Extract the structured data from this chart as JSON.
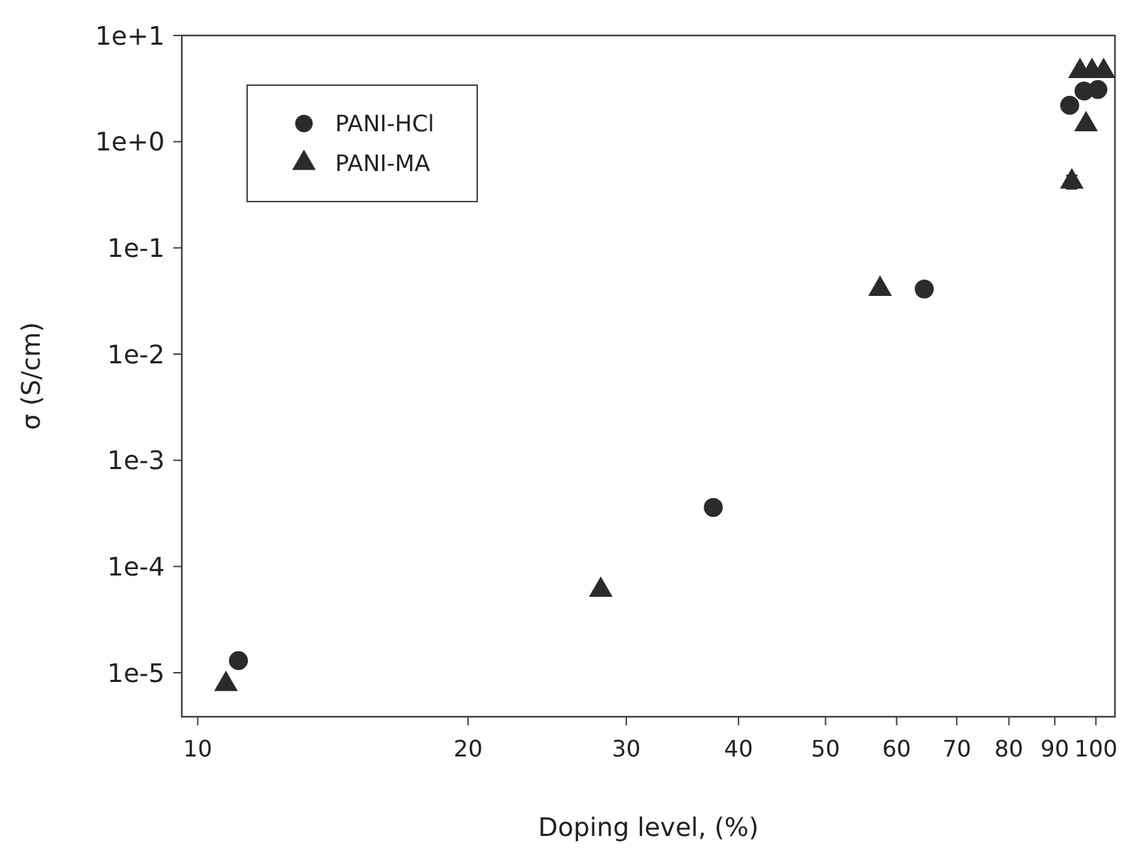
{
  "chart_data": {
    "type": "scatter",
    "xlabel": "Doping level, (%)",
    "ylabel": "σ (S/cm)",
    "log": "xy",
    "xlim": [
      9.6,
      105
    ],
    "ylim": [
      3.85e-06,
      10
    ],
    "xticks": [
      10,
      20,
      30,
      40,
      50,
      60,
      70,
      80,
      90,
      100
    ],
    "yticks": [
      {
        "value": 1e-05,
        "label": "1e-5"
      },
      {
        "value": 0.0001,
        "label": "1e-4"
      },
      {
        "value": 0.001,
        "label": "1e-3"
      },
      {
        "value": 0.01,
        "label": "1e-2"
      },
      {
        "value": 0.1,
        "label": "1e-1"
      },
      {
        "value": 1,
        "label": "1e+0"
      },
      {
        "value": 10,
        "label": "1e+1"
      }
    ],
    "grid": false,
    "legend": "top left",
    "series": [
      {
        "name": "PANI-HCl",
        "color": "#2b2b2b",
        "marker": "circle",
        "x": [
          11.1,
          37.5,
          64.4,
          93.5,
          97,
          100.5
        ],
        "values": [
          1.3e-05,
          0.00036,
          0.041,
          2.2,
          3.0,
          3.1
        ]
      },
      {
        "name": "PANI-MA",
        "color": "#2b2b2b",
        "marker": "triangle",
        "x": [
          10.75,
          28.1,
          57.5,
          94,
          97.5,
          96,
          99,
          102
        ],
        "values": [
          7.8e-06,
          6e-05,
          0.041,
          0.42,
          1.45,
          4.6,
          4.6,
          4.6
        ],
        "errors": [
          null,
          null,
          null,
          [
            0.36,
            0.48
          ],
          null,
          null,
          null,
          null
        ]
      }
    ]
  }
}
